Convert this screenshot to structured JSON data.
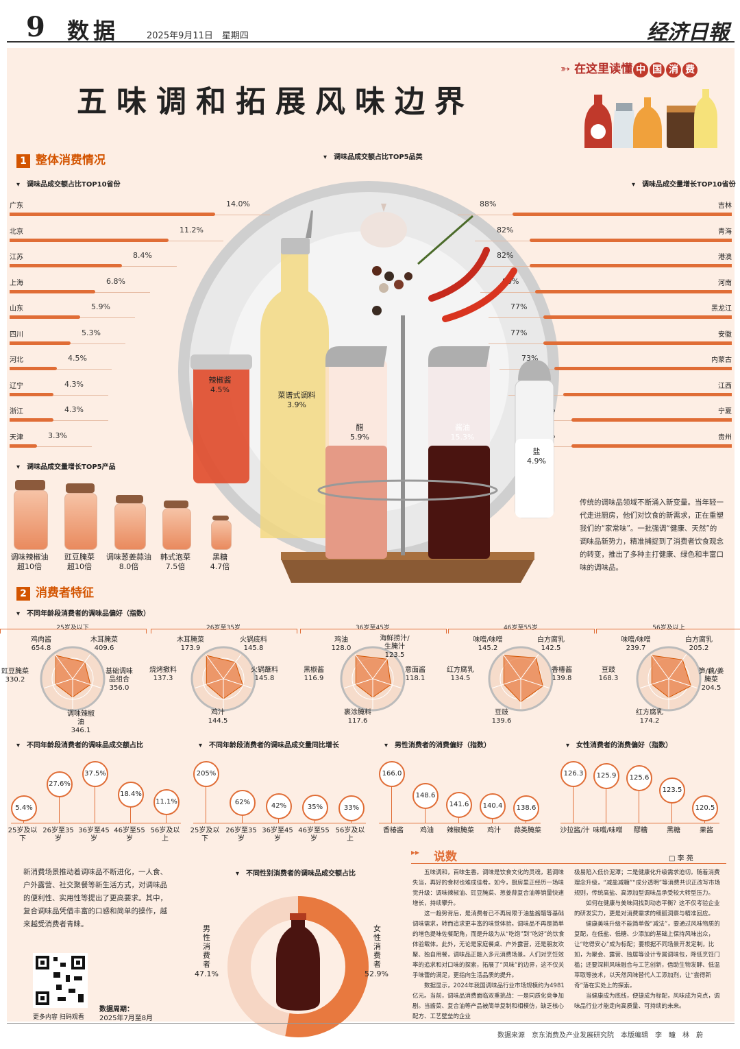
{
  "header": {
    "page_number": "9",
    "section": "数据",
    "date": "2025年9月11日　星期四",
    "newspaper": "经济日報"
  },
  "headline": "五味调和拓展风味边界",
  "banner": {
    "prefix": "在这里读懂",
    "circled": [
      "中",
      "国",
      "消",
      "费"
    ]
  },
  "section1": {
    "number": "1",
    "title": "整体消费情况",
    "left_chart": {
      "title": "调味品成交额占比TOP10省份",
      "rows": [
        {
          "province": "广东",
          "value": "14.0%",
          "share": 14.0
        },
        {
          "province": "北京",
          "value": "11.2%",
          "share": 11.2
        },
        {
          "province": "江苏",
          "value": "8.4%",
          "share": 8.4
        },
        {
          "province": "上海",
          "value": "6.8%",
          "share": 6.8
        },
        {
          "province": "山东",
          "value": "5.9%",
          "share": 5.9
        },
        {
          "province": "四川",
          "value": "5.3%",
          "share": 5.3
        },
        {
          "province": "河北",
          "value": "4.5%",
          "share": 4.5
        },
        {
          "province": "辽宁",
          "value": "4.3%",
          "share": 4.3
        },
        {
          "province": "浙江",
          "value": "4.3%",
          "share": 4.3
        },
        {
          "province": "天津",
          "value": "3.3%",
          "share": 3.3
        }
      ]
    },
    "center_chart": {
      "title": "调味品成交额占比TOP5品类",
      "items": [
        {
          "name": "辣椒酱",
          "value": "4.5%"
        },
        {
          "name": "菜谱式调料",
          "value": "3.9%"
        },
        {
          "name": "醋",
          "value": "5.9%"
        },
        {
          "name": "酱油",
          "value": "15.3%"
        },
        {
          "name": "盐",
          "value": "4.9%"
        }
      ]
    },
    "right_chart": {
      "title": "调味品成交量增长TOP10省份",
      "rows": [
        {
          "province": "吉林",
          "value": "88%",
          "growth": 88
        },
        {
          "province": "青海",
          "value": "82%",
          "growth": 82
        },
        {
          "province": "港澳",
          "value": "82%",
          "growth": 82
        },
        {
          "province": "河南",
          "value": "80%",
          "growth": 80
        },
        {
          "province": "黑龙江",
          "value": "77%",
          "growth": 77
        },
        {
          "province": "安徽",
          "value": "77%",
          "growth": 77
        },
        {
          "province": "内蒙古",
          "value": "73%",
          "growth": 73
        },
        {
          "province": "江西",
          "value": "70%",
          "growth": 70
        },
        {
          "province": "宁夏",
          "value": "67%",
          "growth": 67
        },
        {
          "province": "贵州",
          "value": "67%",
          "growth": 67
        }
      ]
    },
    "products": {
      "title": "调味品成交量增长TOP5产品",
      "items": [
        {
          "name": "调味辣椒油",
          "value": "超10倍"
        },
        {
          "name": "豇豆腌菜",
          "value": "超10倍"
        },
        {
          "name": "调味葱姜蒜油",
          "value": "8.0倍"
        },
        {
          "name": "韩式泡菜",
          "value": "7.5倍"
        },
        {
          "name": "黑糖",
          "value": "4.7倍"
        }
      ]
    },
    "paragraph": "传统的调味品领域不断涌入新变量。当年轻一代走进厨房，他们对饮食的新需求，正在重塑我们的“家常味”。一批强调“健康、天然”的调味品新势力，精准捕捉到了消费者饮食观念的转变，推出了多种主打健康、绿色和丰富口味的调味品。"
  },
  "section2": {
    "number": "2",
    "title": "消费者特征",
    "radar_title": "不同年龄段消费者的调味品偏好（指数）",
    "radars": [
      {
        "age": "25岁及以下",
        "labels": [
          {
            "name": "鸡肉酱",
            "value": "654.8"
          },
          {
            "name": "木耳腌菜",
            "value": "409.6"
          },
          {
            "name": "基础调味品组合",
            "value": "356.0"
          },
          {
            "name": "调味辣椒油",
            "value": "346.1"
          },
          {
            "name": "豇豆腌菜",
            "value": "330.2"
          }
        ]
      },
      {
        "age": "26岁至35岁",
        "labels": [
          {
            "name": "木耳腌菜",
            "value": "173.9"
          },
          {
            "name": "火锅底料",
            "value": "145.8"
          },
          {
            "name": "火锅蘸料",
            "value": "145.8"
          },
          {
            "name": "鸡汁",
            "value": "144.5"
          },
          {
            "name": "烧烤撒料",
            "value": "137.3"
          }
        ]
      },
      {
        "age": "36岁至45岁",
        "labels": [
          {
            "name": "鸡油",
            "value": "128.0"
          },
          {
            "name": "海鲜捞汁/生腌汁",
            "value": "123.5"
          },
          {
            "name": "意面酱",
            "value": "118.1"
          },
          {
            "name": "裹涂腌料",
            "value": "117.6"
          },
          {
            "name": "黑椒酱",
            "value": "116.9"
          }
        ]
      },
      {
        "age": "46岁至55岁",
        "labels": [
          {
            "name": "味噌/味噌",
            "value": "145.2"
          },
          {
            "name": "白方腐乳",
            "value": "142.5"
          },
          {
            "name": "香椿酱",
            "value": "139.8"
          },
          {
            "name": "豆豉",
            "value": "139.6"
          },
          {
            "name": "红方腐乳",
            "value": "134.5"
          }
        ]
      },
      {
        "age": "56岁及以上",
        "labels": [
          {
            "name": "味噌/味噌",
            "value": "239.7"
          },
          {
            "name": "白方腐乳",
            "value": "205.2"
          },
          {
            "name": "笋/藕/姜腌菜",
            "value": "204.5"
          },
          {
            "name": "红方腐乳",
            "value": "174.2"
          },
          {
            "name": "豆豉",
            "value": "168.3"
          }
        ]
      }
    ],
    "bubble_charts": [
      {
        "title": "不同年龄段消费者的调味品成交额占比",
        "items": [
          {
            "label": "25岁及以下",
            "value": "5.4%",
            "v": 5.4
          },
          {
            "label": "26岁至35岁",
            "value": "27.6%",
            "v": 27.6
          },
          {
            "label": "36岁至45岁",
            "value": "37.5%",
            "v": 37.5
          },
          {
            "label": "46岁至55岁",
            "value": "18.4%",
            "v": 18.4
          },
          {
            "label": "56岁及以上",
            "value": "11.1%",
            "v": 11.1
          }
        ]
      },
      {
        "title": "不同年龄段消费者的调味品成交量同比增长",
        "items": [
          {
            "label": "25岁及以下",
            "value": "205%",
            "v": 205
          },
          {
            "label": "26岁至35岁",
            "value": "62%",
            "v": 62
          },
          {
            "label": "36岁至45岁",
            "value": "42%",
            "v": 42
          },
          {
            "label": "46岁至55岁",
            "value": "35%",
            "v": 35
          },
          {
            "label": "56岁及以上",
            "value": "33%",
            "v": 33
          }
        ]
      },
      {
        "title": "男性消费者的消费偏好（指数）",
        "items": [
          {
            "label": "香椿酱",
            "value": "166.0",
            "v": 166.0
          },
          {
            "label": "鸡油",
            "value": "148.6",
            "v": 148.6
          },
          {
            "label": "辣椒腌菜",
            "value": "141.6",
            "v": 141.6
          },
          {
            "label": "鸡汁",
            "value": "140.4",
            "v": 140.4
          },
          {
            "label": "蒜类腌菜",
            "value": "138.6",
            "v": 138.6
          }
        ]
      },
      {
        "title": "女性消费者的消费偏好（指数）",
        "items": [
          {
            "label": "沙拉酱/汁",
            "value": "126.3",
            "v": 126.3
          },
          {
            "label": "味噌/味噌",
            "value": "125.9",
            "v": 125.9
          },
          {
            "label": "醪糟",
            "value": "125.6",
            "v": 125.6
          },
          {
            "label": "黑糖",
            "value": "123.5",
            "v": 123.5
          },
          {
            "label": "果酱",
            "value": "120.5",
            "v": 120.5
          }
        ]
      }
    ],
    "paragraph": "新消费场景推动着调味品不断进化，一人食、户外露营、社交聚餐等新生活方式，对调味品的便利性、实用性等提出了更高要求。其中，复合调味品凭借丰富的口感和简单的操作，越来越受消费者青睐。",
    "gender": {
      "title": "不同性别消费者的调味品成交额占比",
      "male": {
        "label": "男性消费者",
        "value": "47.1%",
        "share": 47.1
      },
      "female": {
        "label": "女性消费者",
        "value": "52.9%",
        "share": 52.9
      }
    },
    "qr_caption": "更多内容 扫码观看",
    "period_label": "数据周期：",
    "period_value": "2025年7月至8月"
  },
  "commentary": {
    "title": "说数",
    "author": "□ 李 苑",
    "left_paragraphs": [
      "五味调和，百味生香。调味是饮食文化的灵魂，若调味失当，再好的食材也难成佳肴。如今，厨房里正经历一场味觉升级：调味辣椒油、豇豆腌菜、葱姜蒜复合油等销量快速增长，持续攀升。",
      "这一趋势背后，是消费者已不再局限于油盐酱醋等基础调味需求，转而追求更丰富的味觉体验。调味品不再是简单的增色提味佐餐配角，而是升级为从“吃饱”到“吃好”的饮食体验载体。此外，无论是家庭餐桌、户外露营，还是朋友欢聚、独自用餐，调味品正融入多元消费场景。人们对烹饪效率的追求和对口味的探索，拓展了“风味”的边界，这不仅关乎味蕾的满足，更指向生活品质的提升。",
      "数据显示，2024年我国调味品行业市场规模约为4981亿元。当前，调味品消费面临双重挑战：一是同质化竞争加剧。当酱菜、复合油等产品被简单复制和相模仿，缺乏核心配方、工艺壁垒的企业"
    ],
    "right_paragraphs": [
      "极易陷入低价泥潭；二是健康化升级需求迫切。随着消费理念升级，“减盐减糖”“成分透明”等消费共识正改写市场规则，传统高盐、高添加型调味品承受较大转型压力。",
      "如何在健康与美味间找到动态平衡？这不仅考验企业的研发实力，更是对消费需求的细腻洞察与精准回应。",
      "健康美味升级不能简单做“减法”，要通过风味物质的复配，在低盐、低糖、少添加的基础上保持风味出众，让“吃得安心”成为标配；要根据不同场景开发定制，比如，为聚会、露营、独居等设计专属调味包，降低烹饪门槛；还要深耕风味融合与工艺创新，借助生物发酵、低温萃取等技术，以天然风味替代人工添加剂，让“尝得新奇”落在实处上的探索。",
      "当健康成为底线，便捷成为标配，风味成为亮点，调味品行业才能走向高质量、可持续的未来。"
    ]
  },
  "footer": {
    "source": "数据来源　京东消费及产业发展研究院　本版编辑　李　瞳　林　蔚"
  },
  "colors": {
    "accent": "#e06d36",
    "title": "#d35400",
    "background": "#fdeee4"
  }
}
